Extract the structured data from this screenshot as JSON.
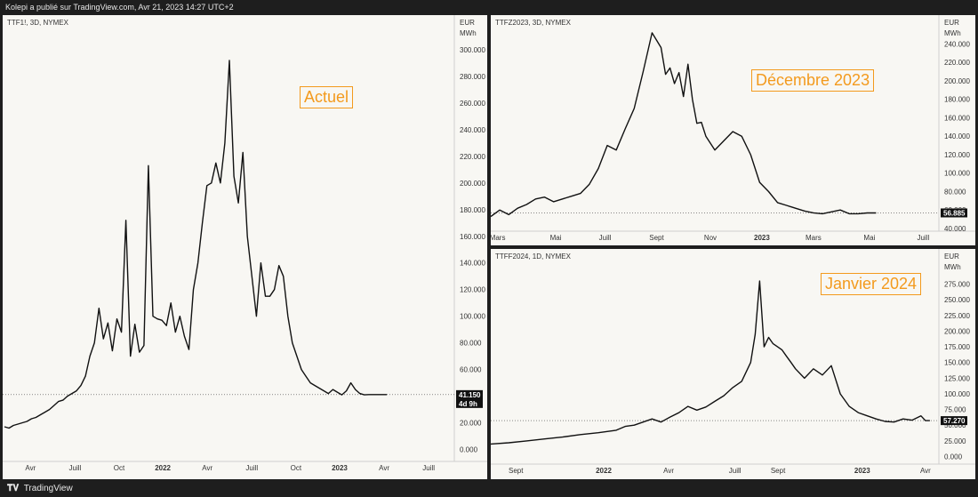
{
  "header": {
    "text": "Kolepi a publié sur TradingView.com, Avr 21, 2023 14:27 UTC+2"
  },
  "footer": {
    "brand": "TradingView",
    "logo": "TV-logo-icon"
  },
  "chart_data": [
    {
      "id": "p1",
      "type": "line",
      "symbol": "TTF1!, 3D, NYMEX",
      "currency": "EUR",
      "unit": "MWh",
      "annotation": "Actuel",
      "last_value": "41.150",
      "countdown": "4d 9h",
      "ylim": [
        -5,
        310
      ],
      "yticks": [
        "0.000",
        "20.000",
        "40.000",
        "60.000",
        "80.000",
        "100.000",
        "120.000",
        "140.000",
        "160.000",
        "180.000",
        "200.000",
        "220.000",
        "240.000",
        "260.000",
        "280.000",
        "300.000"
      ],
      "ytick_values": [
        0,
        20,
        40,
        60,
        80,
        100,
        120,
        140,
        160,
        180,
        200,
        220,
        240,
        260,
        280,
        300
      ],
      "xlim": [
        0,
        100
      ],
      "xticks": [
        "Avr",
        "Juill",
        "Oct",
        "2022",
        "Avr",
        "Juill",
        "Oct",
        "2023",
        "Avr",
        "Juill"
      ],
      "xtick_values": [
        5.8,
        15.7,
        25.5,
        35.2,
        45.1,
        55.0,
        64.8,
        74.5,
        84.4,
        94.3
      ],
      "bold_xticks": [
        "2022",
        "2023"
      ],
      "x": [
        0,
        1,
        2,
        3,
        4,
        5,
        6,
        7,
        8,
        9,
        10,
        11,
        12,
        13,
        14,
        15,
        16,
        17,
        18,
        19,
        20,
        21,
        22,
        23,
        24,
        25,
        26,
        27,
        28,
        29,
        30,
        31,
        32,
        33,
        34,
        35,
        36,
        37,
        38,
        39,
        40,
        41,
        42,
        43,
        44,
        45,
        46,
        47,
        48,
        49,
        50,
        51,
        52,
        53,
        54,
        55,
        56,
        57,
        58,
        59,
        60,
        61,
        62,
        63,
        64,
        65,
        66,
        67,
        68,
        69,
        70,
        71,
        72,
        73,
        74,
        75,
        76,
        77,
        78,
        79,
        80,
        81,
        82,
        83,
        84,
        85
      ],
      "y": [
        17,
        16,
        18,
        19,
        20,
        21,
        23,
        24,
        26,
        28,
        30,
        33,
        36,
        37,
        40,
        42,
        44,
        48,
        55,
        70,
        80,
        106,
        83,
        95,
        74,
        98,
        88,
        172,
        70,
        94,
        73,
        78,
        213,
        100,
        98,
        97,
        93,
        110,
        88,
        100,
        85,
        75,
        120,
        140,
        170,
        198,
        200,
        215,
        200,
        230,
        292,
        205,
        185,
        223,
        160,
        130,
        100,
        140,
        115,
        115,
        120,
        138,
        130,
        100,
        80,
        70,
        60,
        55,
        50,
        48,
        46,
        44,
        42,
        45,
        43,
        41,
        44,
        50,
        45,
        42,
        41,
        41.15,
        41.15,
        41.15,
        41.15,
        41.15
      ]
    },
    {
      "id": "p2",
      "type": "line",
      "symbol": "TTFZ2023, 3D, NYMEX",
      "currency": "EUR",
      "unit": "MWh",
      "annotation": "Décembre 2023",
      "last_value": "56.885",
      "ylim": [
        40,
        250
      ],
      "yticks": [
        "40.000",
        "60.000",
        "80.000",
        "100.000",
        "120.000",
        "140.000",
        "160.000",
        "180.000",
        "200.000",
        "220.000",
        "240.000"
      ],
      "ytick_values": [
        40,
        60,
        80,
        100,
        120,
        140,
        160,
        180,
        200,
        220,
        240
      ],
      "xlim": [
        0,
        100
      ],
      "xticks": [
        "Mars",
        "Mai",
        "Juill",
        "Sept",
        "Nov",
        "2023",
        "Mars",
        "Mai",
        "Juill"
      ],
      "xtick_values": [
        1.5,
        14.5,
        25.5,
        37,
        49,
        60.5,
        72,
        84.5,
        96.5
      ],
      "bold_xticks": [
        "2023"
      ],
      "x": [
        0,
        2,
        4,
        6,
        8,
        10,
        12,
        14,
        16,
        18,
        20,
        22,
        24,
        26,
        28,
        30,
        32,
        34,
        36,
        38,
        39,
        40,
        41,
        42,
        43,
        44,
        45,
        46,
        47,
        48,
        50,
        52,
        54,
        56,
        58,
        60,
        62,
        64,
        66,
        68,
        70,
        72,
        74,
        76,
        78,
        80,
        82,
        84,
        86
      ],
      "y": [
        53,
        60,
        55,
        62,
        66,
        72,
        74,
        69,
        72,
        75,
        78,
        88,
        105,
        130,
        125,
        148,
        170,
        210,
        252,
        236,
        207,
        214,
        197,
        209,
        183,
        218,
        180,
        154,
        155,
        140,
        125,
        135,
        145,
        140,
        120,
        90,
        80,
        68,
        65,
        62,
        59,
        57,
        56,
        58,
        60,
        56,
        56,
        56.885,
        56.885
      ]
    },
    {
      "id": "p3",
      "type": "line",
      "symbol": "TTFF2024, 1D, NYMEX",
      "currency": "EUR",
      "unit": "MWh",
      "annotation": "Janvier 2024",
      "last_value": "57.270",
      "ylim": [
        -5,
        300
      ],
      "yticks": [
        "0.000",
        "25.000",
        "50.000",
        "75.000",
        "100.000",
        "125.000",
        "150.000",
        "175.000",
        "200.000",
        "225.000",
        "250.000",
        "275.000"
      ],
      "ytick_values": [
        0,
        25,
        50,
        75,
        100,
        125,
        150,
        175,
        200,
        225,
        250,
        275
      ],
      "xlim": [
        0,
        100
      ],
      "xticks": [
        "Sept",
        "2022",
        "Avr",
        "Juill",
        "Sept",
        "2023",
        "Avr"
      ],
      "xtick_values": [
        5.6,
        25.2,
        39.7,
        54.5,
        64.1,
        82.9,
        97
      ],
      "bold_xticks": [
        "2022",
        "2023"
      ],
      "x": [
        0,
        4,
        8,
        12,
        16,
        20,
        24,
        28,
        30,
        32,
        34,
        36,
        38,
        40,
        42,
        44,
        46,
        48,
        50,
        52,
        54,
        56,
        58,
        59,
        60,
        61,
        62,
        63,
        64,
        65,
        66,
        67,
        68,
        70,
        72,
        74,
        76,
        78,
        80,
        82,
        84,
        86,
        88,
        90,
        92,
        94,
        96,
        97,
        98
      ],
      "y": [
        20,
        22,
        25,
        28,
        31,
        35,
        38,
        42,
        48,
        50,
        55,
        60,
        55,
        63,
        70,
        80,
        74,
        79,
        88,
        97,
        110,
        120,
        150,
        195,
        280,
        175,
        190,
        180,
        175,
        170,
        160,
        150,
        140,
        125,
        140,
        130,
        145,
        100,
        80,
        70,
        65,
        60,
        56,
        55,
        60,
        58,
        65,
        57.27,
        57.27
      ]
    }
  ]
}
